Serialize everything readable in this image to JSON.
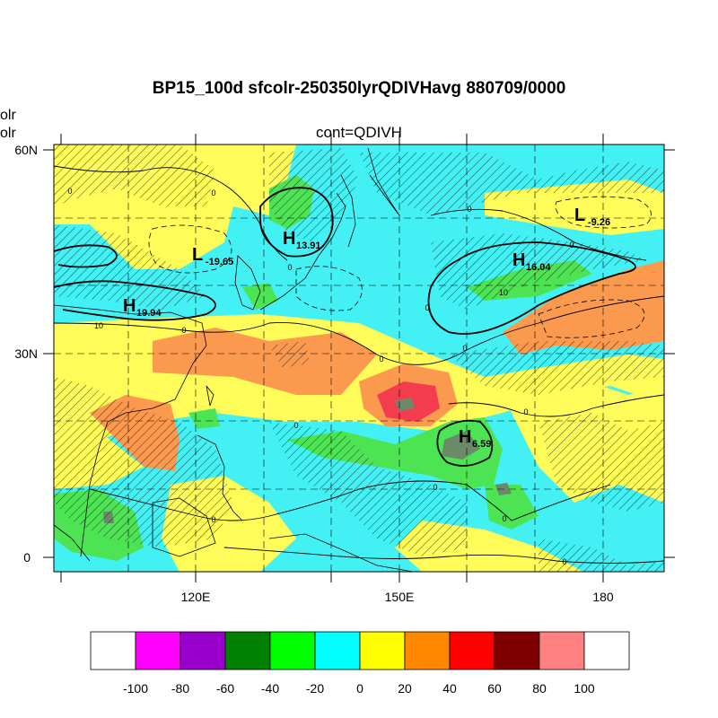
{
  "title": "BP15_100d sfcolr-250350lyrQDIVHavg  880709/0000",
  "subtitle": "cont=QDIVH",
  "left_fragments": [
    "olr",
    "olr"
  ],
  "axes": {
    "lat_labels": [
      "60N",
      "30N",
      "0"
    ],
    "lon_labels": [
      "120E",
      "150E",
      "180"
    ]
  },
  "pressure_centers": [
    {
      "type": "L",
      "value": "-19.65"
    },
    {
      "type": "H",
      "value": "13.91"
    },
    {
      "type": "H",
      "value": "19.94"
    },
    {
      "type": "H",
      "value": "16.04"
    },
    {
      "type": "L",
      "value": "-9.26"
    },
    {
      "type": "H",
      "value": "6.59"
    }
  ],
  "contour_labels": [
    "0",
    "0",
    "0",
    "10",
    "0",
    "0",
    "0",
    "10",
    "0",
    "0",
    "0",
    "0",
    "0",
    "0",
    "0",
    "0",
    "0"
  ],
  "colorbar": {
    "labels": [
      "-100",
      "-80",
      "-60",
      "-40",
      "-20",
      "0",
      "20",
      "40",
      "60",
      "80",
      "100"
    ],
    "colors": [
      "#ffffff",
      "#ff00ff",
      "#9900cc",
      "#008000",
      "#00ff00",
      "#00ffff",
      "#ffff00",
      "#ff8800",
      "#ff0000",
      "#800000",
      "#ff8080",
      "#ffffff"
    ]
  },
  "palette": {
    "cyan": "#43f1f4",
    "yellow": "#fffb58",
    "orange": "#fb9a4e",
    "green": "#4de454",
    "red": "#f43c4f",
    "dark": "#6b8a6a",
    "line": "#000000"
  }
}
